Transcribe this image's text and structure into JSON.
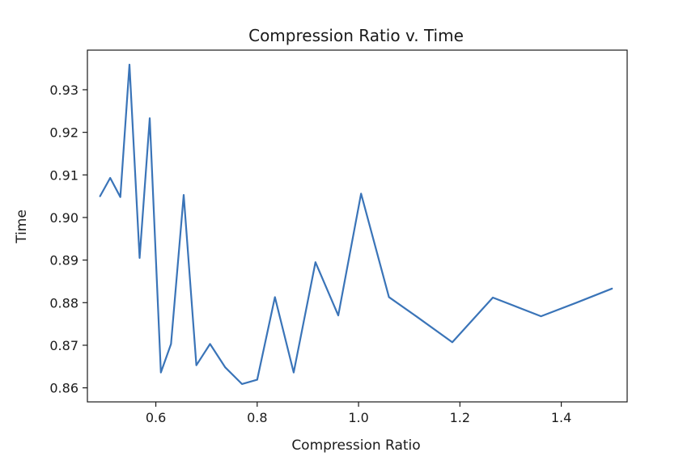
{
  "chart_data": {
    "type": "line",
    "title": "Compression Ratio v. Time",
    "xlabel": "Compression Ratio",
    "ylabel": "Time",
    "xlim": [
      0.465,
      1.53
    ],
    "ylim": [
      0.8567,
      0.9393
    ],
    "grid": false,
    "line_color": "#3a74b8",
    "x_ticks": [
      {
        "value": 0.6,
        "label": "0.6"
      },
      {
        "value": 0.8,
        "label": "0.8"
      },
      {
        "value": 1.0,
        "label": "1.0"
      },
      {
        "value": 1.2,
        "label": "1.2"
      },
      {
        "value": 1.4,
        "label": "1.4"
      }
    ],
    "y_ticks": [
      {
        "value": 0.86,
        "label": "0.86"
      },
      {
        "value": 0.87,
        "label": "0.87"
      },
      {
        "value": 0.88,
        "label": "0.88"
      },
      {
        "value": 0.89,
        "label": "0.89"
      },
      {
        "value": 0.9,
        "label": "0.90"
      },
      {
        "value": 0.91,
        "label": "0.91"
      },
      {
        "value": 0.92,
        "label": "0.92"
      },
      {
        "value": 0.93,
        "label": "0.93"
      }
    ],
    "series": [
      {
        "name": "Time",
        "x": [
          0.49,
          0.51,
          0.53,
          0.548,
          0.568,
          0.588,
          0.61,
          0.63,
          0.655,
          0.68,
          0.707,
          0.737,
          0.77,
          0.8,
          0.835,
          0.872,
          0.915,
          0.96,
          1.005,
          1.06,
          1.115,
          1.185,
          1.265,
          1.36,
          1.43,
          1.5
        ],
        "y": [
          0.905,
          0.9093,
          0.9048,
          0.9359,
          0.8905,
          0.9233,
          0.8636,
          0.8703,
          0.9053,
          0.8653,
          0.8703,
          0.8648,
          0.8609,
          0.8619,
          0.8813,
          0.8636,
          0.8895,
          0.877,
          0.9056,
          0.8813,
          0.8767,
          0.8707,
          0.8812,
          0.8768,
          0.88,
          0.8833
        ]
      }
    ]
  }
}
